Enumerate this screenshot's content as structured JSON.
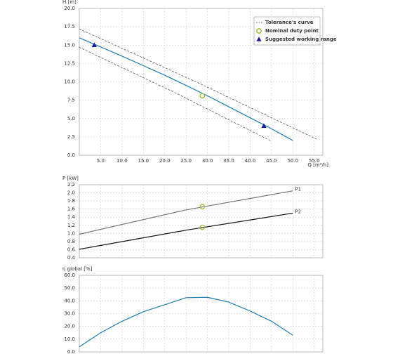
{
  "chart_data": [
    {
      "type": "line",
      "ylabel": "H [m]",
      "xlabel": "Q [m³/h]",
      "legend": "upper right",
      "grid": true,
      "xtick_labels": true,
      "xlim": [
        0,
        57
      ],
      "ylim": [
        0,
        20
      ],
      "xticks": [
        {
          "value": 5,
          "label": "5.0"
        },
        {
          "value": 10,
          "label": "10.0"
        },
        {
          "value": 15,
          "label": "15.0"
        },
        {
          "value": 20,
          "label": "20.0"
        },
        {
          "value": 25,
          "label": "25.0"
        },
        {
          "value": 30,
          "label": "30.0"
        },
        {
          "value": 35,
          "label": "35.0"
        },
        {
          "value": 40,
          "label": "40.0"
        },
        {
          "value": 45,
          "label": "45.0"
        },
        {
          "value": 50,
          "label": "50.0"
        },
        {
          "value": 55,
          "label": "55.0"
        }
      ],
      "yticks": [
        {
          "value": 0,
          "label": "0.0"
        },
        {
          "value": 2.5,
          "label": "2.5"
        },
        {
          "value": 5,
          "label": "5.0"
        },
        {
          "value": 7.5,
          "label": "7.5"
        },
        {
          "value": 10,
          "label": "10.0"
        },
        {
          "value": 12.5,
          "label": "12.5"
        },
        {
          "value": 15,
          "label": "15.0"
        },
        {
          "value": 17.5,
          "label": "17.5"
        },
        {
          "value": 20,
          "label": "20.0"
        }
      ],
      "series": [
        {
          "color": "#1f7ab0",
          "style": "solid",
          "x": [
            0,
            5,
            10,
            15,
            20,
            25,
            30,
            35,
            40,
            45,
            50
          ],
          "values": [
            16.0,
            14.75,
            13.5,
            12.2,
            10.9,
            9.5,
            8.1,
            6.6,
            5.1,
            3.6,
            2.0
          ]
        },
        {
          "name": "Tolerance's curve",
          "color": "#555555",
          "style": "dashed",
          "x": [
            0,
            27.7,
            55.5
          ],
          "values": [
            17.2,
            9.9,
            2.2
          ]
        },
        {
          "color": "#555555",
          "style": "dashed",
          "x": [
            0,
            22.5,
            45
          ],
          "values": [
            14.7,
            8.5,
            1.9
          ]
        },
        {
          "name": "Nominal duty point",
          "color": "#9bbb2a",
          "marker": "circle",
          "x": [
            28.8
          ],
          "values": [
            8.1
          ]
        },
        {
          "name": "Suggested working range",
          "color": "#1a1aa0",
          "marker": "triangle",
          "x": [
            3.5,
            43.2
          ],
          "values": [
            15.0,
            4.0
          ]
        }
      ]
    },
    {
      "type": "line",
      "ylabel": "P [kW]",
      "grid": true,
      "xtick_labels": false,
      "series_labels": true,
      "xlim": [
        0,
        57
      ],
      "ylim": [
        0.4,
        2.2
      ],
      "xticks": [
        5,
        10,
        15,
        20,
        25,
        30,
        35,
        40,
        45,
        50,
        55
      ],
      "yticks": [
        0.4,
        0.6,
        0.8,
        {
          "value": 1,
          "label": "1.0"
        },
        1.2,
        1.4,
        1.6,
        1.8,
        {
          "value": 2,
          "label": "2.0"
        },
        2.2
      ],
      "series": [
        {
          "name": "P1",
          "color": "#777777",
          "style": "solid",
          "x": [
            0,
            25,
            50
          ],
          "values": [
            0.98,
            1.58,
            2.05
          ]
        },
        {
          "name": "P2",
          "color": "#111111",
          "style": "solid",
          "x": [
            0,
            25,
            50
          ],
          "values": [
            0.61,
            1.08,
            1.5
          ]
        },
        {
          "color": "#9bbb2a",
          "marker": "circle",
          "x": [
            28.8,
            28.8
          ],
          "values": [
            1.66,
            1.15
          ]
        }
      ]
    },
    {
      "type": "line",
      "ylabel": "η global [%]",
      "grid": true,
      "xtick_labels": false,
      "xlim": [
        0,
        57
      ],
      "ylim": [
        0,
        60
      ],
      "xticks": [
        5,
        10,
        15,
        20,
        25,
        30,
        35,
        40,
        45,
        50,
        55
      ],
      "yticks": [
        {
          "value": 0,
          "label": "0.0"
        },
        {
          "value": 10,
          "label": "10.0"
        },
        {
          "value": 20,
          "label": "20.0"
        },
        {
          "value": 30,
          "label": "30.0"
        },
        {
          "value": 40,
          "label": "40.0"
        },
        {
          "value": 50,
          "label": "50.0"
        },
        {
          "value": 60,
          "label": "60.0"
        }
      ],
      "series": [
        {
          "color": "#1f7ab0",
          "style": "solid",
          "x": [
            0,
            5,
            10,
            15,
            20,
            25,
            30,
            35,
            40,
            45,
            50
          ],
          "values": [
            4,
            15,
            24,
            31.5,
            37,
            42.5,
            42.8,
            39,
            32,
            24,
            13
          ]
        }
      ]
    }
  ]
}
